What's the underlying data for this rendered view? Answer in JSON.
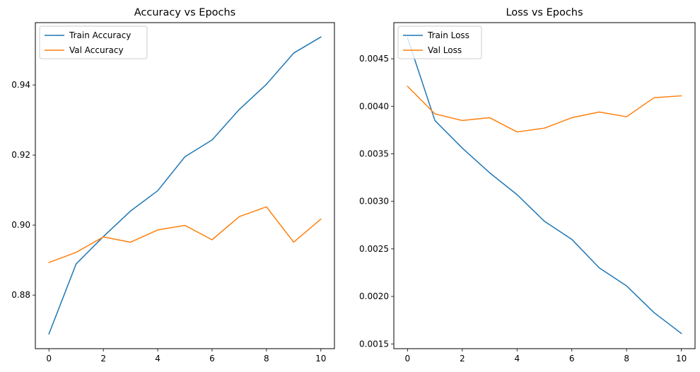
{
  "chart_data": [
    {
      "type": "line",
      "title": "Accuracy vs Epochs",
      "xlabel": "",
      "ylabel": "",
      "x": [
        0,
        1,
        2,
        3,
        4,
        5,
        6,
        7,
        8,
        9,
        10
      ],
      "xlim": [
        -0.5,
        10.5
      ],
      "ylim": [
        0.8647,
        0.9578
      ],
      "xticks": [
        0,
        2,
        4,
        6,
        8,
        10
      ],
      "yticks": [
        0.88,
        0.9,
        0.92,
        0.94
      ],
      "ytick_labels": [
        "0.88",
        "0.90",
        "0.92",
        "0.94"
      ],
      "grid": false,
      "legend_position": "upper left",
      "series": [
        {
          "name": "Train Accuracy",
          "color": "#1f77b4",
          "values": [
            0.8689,
            0.8889,
            0.8967,
            0.904,
            0.9098,
            0.9195,
            0.9243,
            0.933,
            0.9402,
            0.9491,
            0.9537
          ]
        },
        {
          "name": "Val Accuracy",
          "color": "#ff7f0e",
          "values": [
            0.8893,
            0.8922,
            0.8966,
            0.8951,
            0.8986,
            0.8999,
            0.8958,
            0.9024,
            0.9052,
            0.8951,
            0.9017
          ]
        }
      ]
    },
    {
      "type": "line",
      "title": "Loss vs Epochs",
      "xlabel": "",
      "ylabel": "",
      "x": [
        0,
        1,
        2,
        3,
        4,
        5,
        6,
        7,
        8,
        9,
        10
      ],
      "xlim": [
        -0.5,
        10.5
      ],
      "ylim": [
        0.00145,
        0.00488
      ],
      "xticks": [
        0,
        2,
        4,
        6,
        8,
        10
      ],
      "yticks": [
        0.0015,
        0.002,
        0.0025,
        0.003,
        0.0035,
        0.004,
        0.0045
      ],
      "ytick_labels": [
        "0.0015",
        "0.0020",
        "0.0025",
        "0.0030",
        "0.0035",
        "0.0040",
        "0.0045"
      ],
      "grid": false,
      "legend_position": "upper left",
      "series": [
        {
          "name": "Train Loss",
          "color": "#1f77b4",
          "values": [
            0.00472,
            0.00385,
            0.00356,
            0.0033,
            0.00307,
            0.00279,
            0.0026,
            0.0023,
            0.00211,
            0.00183,
            0.00161
          ]
        },
        {
          "name": "Val Loss",
          "color": "#ff7f0e",
          "values": [
            0.00421,
            0.00392,
            0.00385,
            0.00388,
            0.00373,
            0.00377,
            0.00388,
            0.00394,
            0.00389,
            0.00409,
            0.00411
          ]
        }
      ]
    }
  ]
}
